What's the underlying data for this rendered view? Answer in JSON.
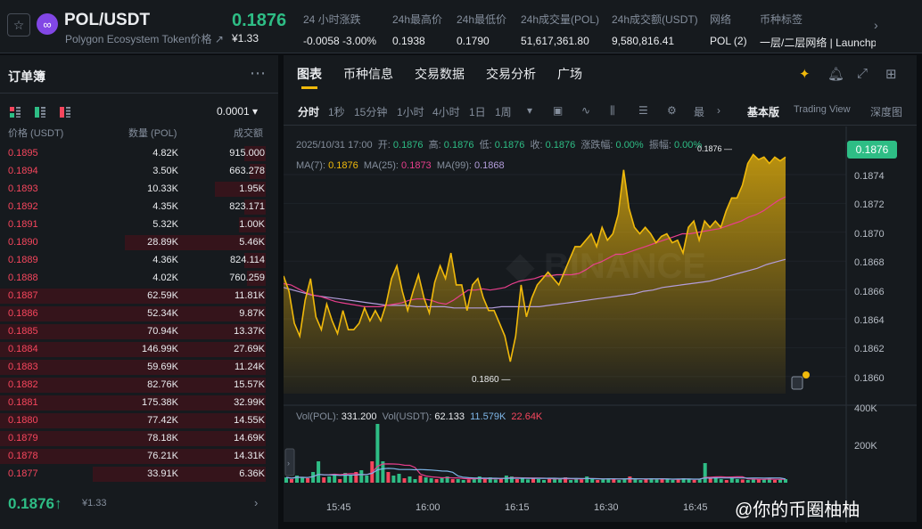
{
  "header": {
    "pair": "POL/USDT",
    "subtitle": "Polygon Ecosystem Token价格 ↗",
    "price": "0.1876",
    "price_usd": "¥1.33",
    "stats": [
      {
        "label": "24 小时涨跌",
        "value": "-0.0058 -3.00%"
      },
      {
        "label": "24h最高价",
        "value": "0.1938"
      },
      {
        "label": "24h最低价",
        "value": "0.1790"
      },
      {
        "label": "24h成交量(POL)",
        "value": "51,617,361.80"
      },
      {
        "label": "24h成交额(USDT)",
        "value": "9,580,816.41"
      },
      {
        "label": "网络",
        "value": "POL (2)"
      },
      {
        "label": "币种标签",
        "value": "一层/二层网络 | Launchp"
      }
    ]
  },
  "orderbook": {
    "title": "订单簿",
    "tick": "0.0001 ▾",
    "columns": [
      "价格 (USDT)",
      "数量 (POL)",
      "成交额"
    ],
    "asks": [
      {
        "price": "0.1895",
        "qty": "4.82K",
        "total": "915.000",
        "depth": 0.08
      },
      {
        "price": "0.1894",
        "qty": "3.50K",
        "total": "663.278",
        "depth": 0.06
      },
      {
        "price": "0.1893",
        "qty": "10.33K",
        "total": "1.95K",
        "depth": 0.19
      },
      {
        "price": "0.1892",
        "qty": "4.35K",
        "total": "823.171",
        "depth": 0.08
      },
      {
        "price": "0.1891",
        "qty": "5.32K",
        "total": "1.00K",
        "depth": 0.1
      },
      {
        "price": "0.1890",
        "qty": "28.89K",
        "total": "5.46K",
        "depth": 0.53
      },
      {
        "price": "0.1889",
        "qty": "4.36K",
        "total": "824.114",
        "depth": 0.08
      },
      {
        "price": "0.1888",
        "qty": "4.02K",
        "total": "760.259",
        "depth": 0.07
      },
      {
        "price": "0.1887",
        "qty": "62.59K",
        "total": "11.81K",
        "depth": 1.0
      },
      {
        "price": "0.1886",
        "qty": "52.34K",
        "total": "9.87K",
        "depth": 1.0
      },
      {
        "price": "0.1885",
        "qty": "70.94K",
        "total": "13.37K",
        "depth": 1.0
      },
      {
        "price": "0.1884",
        "qty": "146.99K",
        "total": "27.69K",
        "depth": 1.0
      },
      {
        "price": "0.1883",
        "qty": "59.69K",
        "total": "11.24K",
        "depth": 1.0
      },
      {
        "price": "0.1882",
        "qty": "82.76K",
        "total": "15.57K",
        "depth": 1.0
      },
      {
        "price": "0.1881",
        "qty": "175.38K",
        "total": "32.99K",
        "depth": 1.0
      },
      {
        "price": "0.1880",
        "qty": "77.42K",
        "total": "14.55K",
        "depth": 1.0
      },
      {
        "price": "0.1879",
        "qty": "78.18K",
        "total": "14.69K",
        "depth": 1.0
      },
      {
        "price": "0.1878",
        "qty": "76.21K",
        "total": "14.31K",
        "depth": 1.0
      },
      {
        "price": "0.1877",
        "qty": "33.91K",
        "total": "6.36K",
        "depth": 0.65
      }
    ],
    "current_price": "0.1876↑",
    "current_usd": "¥1.33"
  },
  "chart_panel": {
    "tabs": [
      "图表",
      "币种信息",
      "交易数据",
      "交易分析",
      "广场"
    ],
    "intervals": [
      "分时",
      "1秒",
      "15分钟",
      "1小时",
      "4小时",
      "1日",
      "1周"
    ],
    "more_label": "最",
    "views": [
      "基本版",
      "Trading View",
      "深度图"
    ],
    "ohlc": {
      "date": "2025/10/31 17:00",
      "open_label": "开:",
      "open": "0.1876",
      "high_label": "高:",
      "high": "0.1876",
      "low_label": "低:",
      "low": "0.1876",
      "close_label": "收:",
      "close": "0.1876",
      "change_label": "涨跌幅:",
      "change": "0.00%",
      "amp_label": "振幅:",
      "amp": "0.00%"
    },
    "ma": {
      "ma7_label": "MA(7):",
      "ma7": "0.1876",
      "ma25_label": "MA(25):",
      "ma25": "0.1873",
      "ma99_label": "MA(99):",
      "ma99": "0.1868"
    },
    "vol": {
      "pol_label": "Vol(POL):",
      "pol": "331.200",
      "usdt_label": "Vol(USDT):",
      "usdt": "62.133",
      "a": "11.579K",
      "b": "22.64K"
    },
    "price_tag": "0.1876",
    "low_marker": "0.1860 —",
    "high_marker": "0.1876 —",
    "watermark": "@你的币圈柚柚",
    "brand_colors": {
      "up": "#2ebd85",
      "down": "#f6465d",
      "accent": "#f0b90b"
    }
  },
  "chart_data": {
    "type": "area",
    "x_ticks": [
      "15:45",
      "16:00",
      "16:15",
      "16:30",
      "16:45"
    ],
    "y_ticks": [
      "0.1874",
      "0.1872",
      "0.1870",
      "0.1868",
      "0.1866",
      "0.1864",
      "0.1862",
      "0.1860"
    ],
    "ylim": [
      0.18575,
      0.1877
    ],
    "vol_ticks": [
      "400K",
      "200K"
    ],
    "price": [
      0.18667,
      0.18655,
      0.1863,
      0.1862,
      0.18648,
      0.18665,
      0.18635,
      0.18625,
      0.18645,
      0.18632,
      0.18622,
      0.1864,
      0.18625,
      0.18625,
      0.1863,
      0.18642,
      0.18632,
      0.1864,
      0.18632,
      0.18645,
      0.18665,
      0.18675,
      0.18655,
      0.1864,
      0.18655,
      0.18668,
      0.1865,
      0.18638,
      0.18662,
      0.18675,
      0.18665,
      0.18685,
      0.1866,
      0.1866,
      0.1864,
      0.1866,
      0.18665,
      0.1865,
      0.1864,
      0.1864,
      0.1863,
      0.1862,
      0.186,
      0.1862,
      0.1866,
      0.18635,
      0.1865,
      0.1866,
      0.18665,
      0.1867,
      0.18665,
      0.1866,
      0.1867,
      0.1868,
      0.1869,
      0.1869,
      0.18695,
      0.187,
      0.1869,
      0.18705,
      0.18695,
      0.187,
      0.18715,
      0.1875,
      0.1872,
      0.18705,
      0.187,
      0.18705,
      0.187,
      0.18693,
      0.18698,
      0.187,
      0.18693,
      0.18695,
      0.18685,
      0.18705,
      0.1871,
      0.18695,
      0.1871,
      0.18705,
      0.1871,
      0.18705,
      0.18718,
      0.18728,
      0.18728,
      0.18738,
      0.18755,
      0.18762,
      0.18758,
      0.1876,
      0.18755,
      0.1876,
      0.18757,
      0.1876
    ],
    "ma25": [
      0.18661,
      0.1866,
      0.18657,
      0.18654,
      0.18652,
      0.18651,
      0.18649,
      0.18647,
      0.18646,
      0.18645,
      0.18644,
      0.18643,
      0.18643,
      0.18643,
      0.18644,
      0.18645,
      0.18646,
      0.18648,
      0.18649,
      0.18649,
      0.18648,
      0.18646,
      0.18645,
      0.18648,
      0.18652,
      0.18656,
      0.18656,
      0.18657,
      0.18656,
      0.18657,
      0.18658,
      0.18661,
      0.18663,
      0.18664,
      0.18665,
      0.18667,
      0.18667,
      0.18668,
      0.18668,
      0.18668,
      0.18669,
      0.18672,
      0.18676,
      0.18678,
      0.18681,
      0.18684,
      0.18684,
      0.18686,
      0.18688,
      0.1869,
      0.18692,
      0.18694,
      0.18696,
      0.18698,
      0.187,
      0.187,
      0.18701,
      0.18702,
      0.18703,
      0.18704,
      0.18706,
      0.18708,
      0.1871,
      0.18713,
      0.18715,
      0.18718,
      0.18722,
      0.18726,
      0.18729
    ],
    "ma99": [
      0.18658,
      0.18656,
      0.18654,
      0.18652,
      0.18651,
      0.1865,
      0.18649,
      0.18648,
      0.18647,
      0.18646,
      0.18645,
      0.18644,
      0.18644,
      0.18644,
      0.18643,
      0.18643,
      0.18643,
      0.18643,
      0.18642,
      0.18642,
      0.18642,
      0.18642,
      0.18642,
      0.18643,
      0.18643,
      0.18643,
      0.18643,
      0.18643,
      0.18644,
      0.18645,
      0.18646,
      0.18647,
      0.18648,
      0.18649,
      0.1865,
      0.18651,
      0.18652,
      0.18653,
      0.18655,
      0.18656,
      0.18658,
      0.18659,
      0.1866,
      0.18661,
      0.18662,
      0.18663,
      0.18665,
      0.18667,
      0.18669,
      0.18671,
      0.18673,
      0.18676,
      0.18678,
      0.1868
    ],
    "volume": [
      30,
      20,
      40,
      30,
      25,
      60,
      120,
      30,
      35,
      40,
      20,
      55,
      45,
      60,
      70,
      40,
      120,
      330,
      120,
      60,
      40,
      50,
      25,
      35,
      20,
      40,
      30,
      25,
      20,
      25,
      35,
      20,
      20,
      15,
      18,
      22,
      35,
      20,
      30,
      18,
      25,
      40,
      35,
      20,
      30,
      18,
      25,
      20,
      15,
      22,
      20,
      25,
      30,
      15,
      22,
      18,
      35,
      20,
      15,
      18,
      25,
      20,
      15,
      22,
      35,
      18,
      15,
      20,
      25,
      18,
      22,
      20,
      15,
      18,
      25,
      20,
      15,
      18,
      110,
      25,
      30,
      20,
      15,
      25,
      20,
      18,
      15,
      22,
      18,
      20,
      25,
      15,
      18,
      20
    ]
  }
}
